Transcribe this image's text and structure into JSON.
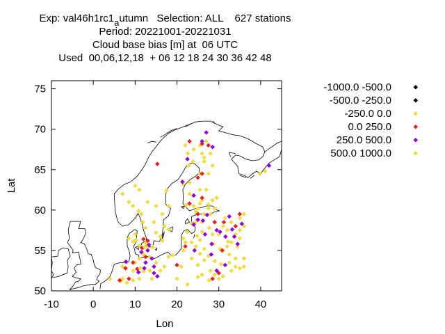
{
  "chart_data": {
    "type": "scatter",
    "title_lines": [
      "Exp: val46h1rc1_autumn   Selection: ALL    627 stations",
      "Period: 20221001-20221031",
      "Cloud base bias [m] at  06 UTC",
      "Used  00,06,12,18  + 06 12 18 24 30 36 42 48"
    ],
    "xlabel": "Lon",
    "ylabel": "Lat",
    "xlim": [
      -10,
      45
    ],
    "ylim": [
      50,
      76
    ],
    "x_ticks": [
      -10,
      0,
      10,
      20,
      30,
      40
    ],
    "y_ticks": [
      50,
      55,
      60,
      65,
      70,
      75
    ],
    "legend_position": "right",
    "series": [
      {
        "name": "-1000.0 -500.0",
        "color": "#000000",
        "points": []
      },
      {
        "name": "-500.0 -250.0",
        "color": "#000000",
        "points": []
      },
      {
        "name": "-250.0 0.0",
        "color": "#f0dc3c",
        "points": [
          [
            24,
            67.5
          ],
          [
            25.5,
            68
          ],
          [
            22,
            68
          ],
          [
            27,
            68.5
          ],
          [
            26,
            67
          ],
          [
            28,
            67
          ],
          [
            23.8,
            66
          ],
          [
            26.5,
            66
          ],
          [
            28.5,
            65.5
          ],
          [
            22.8,
            65.5
          ],
          [
            25.5,
            64.5
          ],
          [
            27.5,
            64.5
          ],
          [
            21.5,
            63.2
          ],
          [
            23,
            63.4
          ],
          [
            25.5,
            62.5
          ],
          [
            27,
            62.5
          ],
          [
            23,
            62
          ],
          [
            22.2,
            60.6
          ],
          [
            24,
            60.5
          ],
          [
            25.5,
            60.8
          ],
          [
            27.5,
            60.7
          ],
          [
            26,
            61.2
          ],
          [
            28.5,
            61.2
          ],
          [
            29.5,
            61.5
          ],
          [
            25,
            60.2
          ],
          [
            24.5,
            59.8
          ],
          [
            26.5,
            59.5
          ],
          [
            27.5,
            60.2
          ],
          [
            29,
            60.2
          ],
          [
            28,
            59.5
          ],
          [
            26,
            58.5
          ],
          [
            23.5,
            58.3
          ],
          [
            24.5,
            58.5
          ],
          [
            27.7,
            57.8
          ],
          [
            26,
            57.3
          ],
          [
            22.5,
            57.3
          ],
          [
            24.8,
            56.8
          ],
          [
            25.5,
            56.3
          ],
          [
            28.5,
            57
          ],
          [
            22,
            56
          ],
          [
            23.5,
            56
          ],
          [
            24.5,
            55.5
          ],
          [
            26.5,
            55.2
          ],
          [
            28.7,
            55.8
          ],
          [
            30.3,
            55.2
          ],
          [
            27.5,
            54.3
          ],
          [
            29,
            53.7
          ],
          [
            30.5,
            53.3
          ],
          [
            25.5,
            54.6
          ],
          [
            26.5,
            53.8
          ],
          [
            23.5,
            54
          ],
          [
            25,
            53.2
          ],
          [
            28,
            52.5
          ],
          [
            26,
            52
          ],
          [
            25,
            51.7
          ],
          [
            27.7,
            51.3
          ],
          [
            30,
            51.5
          ],
          [
            31,
            51.8
          ],
          [
            29,
            52
          ],
          [
            32.5,
            53.5
          ],
          [
            33,
            52.5
          ],
          [
            34,
            54
          ],
          [
            34,
            53
          ],
          [
            35,
            52.8
          ],
          [
            36,
            53
          ],
          [
            36,
            54
          ],
          [
            31,
            55
          ],
          [
            32,
            55.5
          ],
          [
            33,
            56
          ],
          [
            34,
            57
          ],
          [
            35,
            57.5
          ],
          [
            36,
            58
          ],
          [
            35,
            59
          ],
          [
            36,
            59.5
          ],
          [
            33,
            58.5
          ],
          [
            32,
            57.5
          ],
          [
            31,
            58
          ],
          [
            30,
            57
          ],
          [
            31.5,
            59
          ],
          [
            34.5,
            55.5
          ],
          [
            35,
            56.5
          ],
          [
            32.5,
            54.5
          ],
          [
            17.5,
            62.4
          ],
          [
            15,
            60.5
          ],
          [
            14.5,
            58.5
          ],
          [
            16.5,
            59.5
          ],
          [
            18,
            60.5
          ],
          [
            17,
            58
          ],
          [
            16,
            56.7
          ],
          [
            18,
            57.6
          ],
          [
            13,
            55.6
          ],
          [
            14.2,
            55.4
          ],
          [
            12.5,
            55.9
          ],
          [
            11,
            55.6
          ],
          [
            10.2,
            56.3
          ],
          [
            9.5,
            56.1
          ],
          [
            8.5,
            56.5
          ],
          [
            10,
            57
          ],
          [
            12.5,
            57.8
          ],
          [
            11.8,
            58.5
          ],
          [
            11.5,
            59.5
          ],
          [
            10.8,
            59.9
          ],
          [
            9.5,
            60.5
          ],
          [
            8.5,
            61
          ],
          [
            7,
            62
          ],
          [
            10,
            63
          ],
          [
            11,
            62.5
          ],
          [
            13,
            61
          ],
          [
            15,
            57.2
          ],
          [
            16.5,
            56.2
          ],
          [
            12,
            54.5
          ],
          [
            13.5,
            54.2
          ],
          [
            11,
            54
          ],
          [
            10,
            53.5
          ],
          [
            8,
            53.5
          ],
          [
            7,
            53
          ],
          [
            9.5,
            52.5
          ],
          [
            12,
            52.4
          ],
          [
            13.5,
            52.5
          ],
          [
            14,
            51.5
          ],
          [
            11,
            51.5
          ],
          [
            8,
            51
          ],
          [
            7,
            51.5
          ],
          [
            9.5,
            51.3
          ],
          [
            6.5,
            51.2
          ],
          [
            4,
            51.5
          ],
          [
            15,
            53.5
          ],
          [
            16,
            52.5
          ],
          [
            17,
            53
          ],
          [
            18,
            54.2
          ],
          [
            19,
            54.4
          ],
          [
            21,
            53
          ],
          [
            20,
            51.5
          ],
          [
            22.5,
            50.8
          ],
          [
            21.5,
            55
          ],
          [
            39.8,
            64.5
          ],
          [
            41,
            64.8
          ]
        ]
      },
      {
        "name": "0.0 250.0",
        "color": "#e62020",
        "points": [
          [
            23,
            68.5
          ],
          [
            26,
            68.2
          ],
          [
            27.5,
            68
          ],
          [
            15.3,
            65.7
          ],
          [
            26,
            64.5
          ],
          [
            25,
            64
          ],
          [
            23,
            60.8
          ],
          [
            26,
            61.5
          ],
          [
            25,
            59.5
          ],
          [
            29,
            58.5
          ],
          [
            35,
            59.5
          ],
          [
            31.2,
            58.5
          ],
          [
            34,
            58
          ],
          [
            22,
            55.5
          ],
          [
            30.8,
            55
          ],
          [
            28.5,
            51.5
          ],
          [
            30,
            52.2
          ],
          [
            10.5,
            52.7
          ],
          [
            9.5,
            53.5
          ],
          [
            8.5,
            51.5
          ],
          [
            12,
            56.4
          ],
          [
            13,
            56.2
          ],
          [
            6.3,
            51.3
          ],
          [
            7.7,
            52.8
          ],
          [
            20,
            53.2
          ],
          [
            12.5,
            54.2
          ],
          [
            11.7,
            55.3
          ]
        ]
      },
      {
        "name": "250.0 500.0",
        "color": "#9100e0",
        "points": [
          [
            27,
            69.6
          ],
          [
            26,
            68.5
          ],
          [
            28.5,
            67.8
          ],
          [
            22.5,
            66.3
          ],
          [
            21.3,
            63.5
          ],
          [
            24,
            61.8
          ],
          [
            25,
            58.8
          ],
          [
            26.2,
            58.7
          ],
          [
            24,
            58.2
          ],
          [
            29.5,
            57.5
          ],
          [
            30.3,
            57.3
          ],
          [
            33.2,
            57.6
          ],
          [
            31.6,
            56.7
          ],
          [
            33.7,
            56.7
          ],
          [
            35.5,
            58.3
          ],
          [
            32.5,
            59.2
          ],
          [
            27.2,
            59.4
          ],
          [
            28.3,
            55.8
          ],
          [
            26.7,
            57
          ],
          [
            28.2,
            54.5
          ],
          [
            34.5,
            55.8
          ],
          [
            31.5,
            53.2
          ],
          [
            29.5,
            52.5
          ],
          [
            24.2,
            55
          ],
          [
            14.5,
            52.2
          ],
          [
            12.2,
            52.8
          ],
          [
            12.5,
            53.5
          ],
          [
            10.8,
            52.3
          ],
          [
            13.3,
            55.7
          ],
          [
            14.5,
            53
          ],
          [
            15.3,
            51.8
          ],
          [
            14,
            54
          ],
          [
            13,
            55
          ],
          [
            11.5,
            54.8
          ],
          [
            7.8,
            53.6
          ],
          [
            42,
            65.5
          ]
        ]
      },
      {
        "name": "500.0 1000.0",
        "color": "#f0dc3c",
        "points": [
          [
            22.6,
            67
          ],
          [
            26.5,
            66.5
          ],
          [
            21.5,
            56.5
          ],
          [
            32.2,
            56.1
          ],
          [
            12.3,
            55.4
          ],
          [
            11.2,
            52.8
          ]
        ]
      }
    ]
  }
}
